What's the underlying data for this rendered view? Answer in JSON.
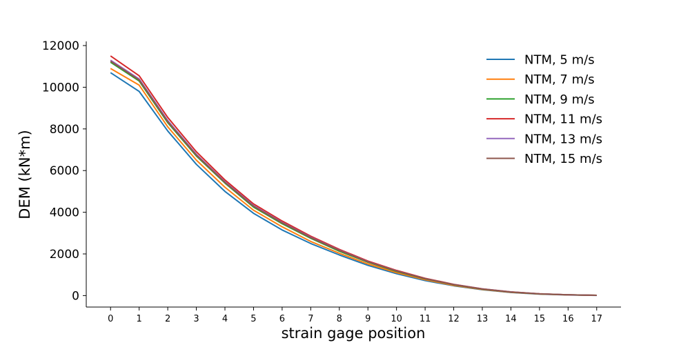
{
  "chart_data": {
    "type": "line",
    "xlabel": "strain gage position",
    "ylabel": "DEM (kN*m)",
    "x": [
      0,
      1,
      2,
      3,
      4,
      5,
      6,
      7,
      8,
      9,
      10,
      11,
      12,
      13,
      14,
      15,
      16,
      17
    ],
    "xlim": [
      -0.85,
      17.85
    ],
    "ylim": [
      -550,
      12200
    ],
    "yticks": [
      0,
      2000,
      4000,
      6000,
      8000,
      10000,
      12000
    ],
    "legend_position": "top-right",
    "grid": false,
    "series": [
      {
        "name": "NTM, 5 m/s",
        "color": "#1f77b4",
        "values": [
          10700,
          9800,
          7900,
          6300,
          5000,
          3950,
          3150,
          2500,
          1950,
          1450,
          1050,
          720,
          470,
          280,
          150,
          70,
          30,
          10
        ]
      },
      {
        "name": "NTM, 7 m/s",
        "color": "#ff7f0e",
        "values": [
          10900,
          10100,
          8100,
          6500,
          5200,
          4100,
          3300,
          2600,
          2030,
          1520,
          1100,
          760,
          490,
          295,
          160,
          75,
          32,
          12
        ]
      },
      {
        "name": "NTM, 9 m/s",
        "color": "#2ca02c",
        "values": [
          11200,
          10300,
          8300,
          6700,
          5400,
          4250,
          3450,
          2750,
          2130,
          1600,
          1160,
          800,
          520,
          310,
          170,
          80,
          35,
          13
        ]
      },
      {
        "name": "NTM, 11 m/s",
        "color": "#d62728",
        "values": [
          11500,
          10550,
          8550,
          6900,
          5550,
          4400,
          3580,
          2850,
          2220,
          1660,
          1210,
          830,
          540,
          325,
          178,
          85,
          38,
          14
        ]
      },
      {
        "name": "NTM, 13 m/s",
        "color": "#9467bd",
        "values": [
          11300,
          10400,
          8400,
          6780,
          5460,
          4320,
          3510,
          2800,
          2180,
          1630,
          1185,
          815,
          530,
          318,
          174,
          83,
          37,
          13
        ]
      },
      {
        "name": "NTM, 15 m/s",
        "color": "#8c564b",
        "values": [
          11250,
          10350,
          8350,
          6740,
          5430,
          4290,
          3490,
          2780,
          2165,
          1620,
          1178,
          810,
          527,
          315,
          172,
          82,
          36,
          13
        ]
      }
    ]
  }
}
